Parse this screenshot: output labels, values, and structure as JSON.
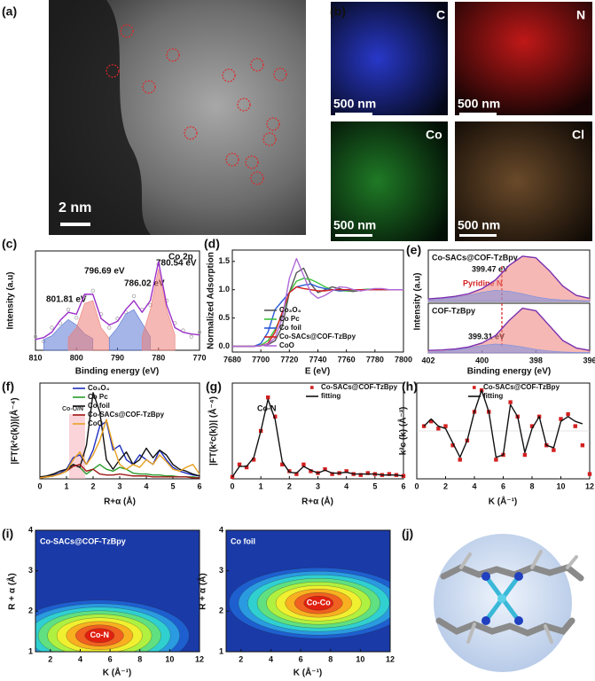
{
  "panels": [
    "(a)",
    "(b)",
    "(c)",
    "(d)",
    "(e)",
    "(f)",
    "(g)",
    "(h)",
    "(i)",
    "(j)"
  ],
  "images": {
    "stem_scale": "2 nm",
    "maps": [
      {
        "element": "C",
        "scale": "500 nm"
      },
      {
        "element": "N",
        "scale": "500 nm"
      },
      {
        "element": "Co",
        "scale": "500 nm"
      },
      {
        "element": "Cl",
        "scale": "500 nm"
      }
    ]
  },
  "chart_data": [
    {
      "type": "line",
      "xlim": [
        810,
        770
      ],
      "xticks": [
        810,
        800,
        790,
        780,
        770
      ],
      "ylim": [
        0,
        1.1
      ],
      "xlabel": "Binding energy (eV)",
      "ylabel": "Intensity (a.u)",
      "annotations": [
        "Co 2p",
        "801.81 eV",
        "796.69 eV",
        "786.02 eV",
        "780.54 eV"
      ],
      "x": [
        810,
        808,
        806,
        804,
        802,
        800,
        798,
        796,
        794,
        792,
        790,
        788,
        786,
        784,
        782,
        780,
        778,
        776,
        774,
        772,
        770
      ],
      "series": [
        {
          "style": "scatter",
          "color": "#a8a8a8",
          "values": [
            0.15,
            0.1,
            0.25,
            0.3,
            0.45,
            0.36,
            0.6,
            0.66,
            0.4,
            0.25,
            0.35,
            0.42,
            0.6,
            0.45,
            0.5,
            0.95,
            0.55,
            0.3,
            0.22,
            0.15,
            0.2
          ]
        },
        {
          "style": "area",
          "color": "#5b78d6",
          "values": [
            null,
            0.12,
            0.16,
            0.26,
            0.34,
            0.28,
            0.18,
            0.13,
            null,
            null,
            null,
            null,
            null,
            null,
            null,
            null,
            null,
            null,
            null,
            null,
            null
          ]
        },
        {
          "style": "area",
          "color": "#ec7d76",
          "values": [
            null,
            null,
            null,
            null,
            0.14,
            0.25,
            0.52,
            0.55,
            0.25,
            0.13,
            null,
            null,
            null,
            null,
            null,
            null,
            null,
            null,
            null,
            null,
            null
          ]
        },
        {
          "style": "area",
          "color": "#5b78d6",
          "values": [
            null,
            null,
            null,
            null,
            null,
            null,
            null,
            null,
            null,
            0.14,
            0.25,
            0.4,
            0.45,
            0.3,
            0.15,
            null,
            null,
            null,
            null,
            null,
            null
          ]
        },
        {
          "style": "area",
          "color": "#ec7d76",
          "values": [
            null,
            null,
            null,
            null,
            null,
            null,
            null,
            null,
            null,
            null,
            null,
            null,
            null,
            0.15,
            0.45,
            0.9,
            0.45,
            0.17,
            null,
            null,
            null
          ]
        },
        {
          "style": "line",
          "color": "#9b2fc9",
          "values": [
            0.12,
            0.14,
            0.2,
            0.33,
            0.42,
            0.4,
            0.62,
            0.62,
            0.35,
            0.28,
            0.32,
            0.45,
            0.55,
            0.42,
            0.55,
            0.98,
            0.5,
            0.25,
            0.2,
            0.18,
            0.17
          ]
        }
      ]
    },
    {
      "type": "line",
      "xlim": [
        7680,
        7800
      ],
      "xticks": [
        7680,
        7700,
        7720,
        7740,
        7760,
        7780,
        7800
      ],
      "ylim": [
        -0.1,
        1.7
      ],
      "yticks": [
        {
          "value": 0,
          "label": "0.0"
        },
        0.5,
        {
          "value": 1,
          "label": "1.0"
        },
        1.5
      ],
      "xlabel": "E (eV)",
      "ylabel": "Normalized Adsorption",
      "x": [
        7680,
        7685,
        7690,
        7695,
        7700,
        7705,
        7710,
        7715,
        7720,
        7725,
        7730,
        7735,
        7740,
        7745,
        7750,
        7755,
        7760,
        7765,
        7770,
        7775,
        7780,
        7785,
        7790,
        7795,
        7800
      ],
      "series": [
        {
          "name": "Co₃O₄",
          "style": "line",
          "color": "#555555",
          "values": [
            0,
            0,
            0,
            0,
            0.01,
            0.03,
            0.1,
            0.35,
            0.95,
            1.3,
            1.38,
            1.1,
            0.95,
            1.0,
            1.05,
            1.02,
            0.98,
            0.97,
            0.99,
            1.0,
            1.01,
            1.0,
            1.0,
            1.0,
            1.0
          ]
        },
        {
          "name": "Co Pc",
          "style": "line",
          "color": "#3cc23c",
          "values": [
            0,
            0,
            0,
            0,
            0.02,
            0.1,
            0.3,
            0.55,
            0.95,
            1.15,
            1.2,
            1.18,
            1.12,
            1.05,
            1.0,
            0.98,
            0.98,
            0.99,
            1.0,
            1.01,
            1.01,
            1.0,
            1.0,
            1.0,
            1.0
          ]
        },
        {
          "name": "Co foil",
          "style": "line",
          "color": "#2a5ad8",
          "values": [
            0,
            0,
            0,
            0,
            0.05,
            0.25,
            0.65,
            0.8,
            0.95,
            1.05,
            1.08,
            1.1,
            1.05,
            1.02,
            1.0,
            0.98,
            0.99,
            1.0,
            1.0,
            1.0,
            1.0,
            1.0,
            1.0,
            1.0,
            1.0
          ]
        },
        {
          "name": "Co-SACs@COF-TzBpy",
          "style": "line",
          "color": "#d42020",
          "values": [
            0,
            0,
            0,
            0,
            0.01,
            0.05,
            0.25,
            0.6,
            0.95,
            1.05,
            1.02,
            1.0,
            0.98,
            0.98,
            1.0,
            1.0,
            1.0,
            1.0,
            1.0,
            1.0,
            1.0,
            1.0,
            1.0,
            1.0,
            1.0
          ]
        },
        {
          "name": "CoO",
          "style": "line",
          "color": "#b06ad8",
          "values": [
            0,
            0,
            0,
            0,
            0.01,
            0.04,
            0.15,
            0.5,
            1.2,
            1.55,
            1.25,
            0.95,
            0.85,
            0.9,
            0.98,
            1.05,
            1.04,
            1.0,
            0.98,
            1.0,
            1.02,
            1.02,
            1.0,
            1.0,
            1.0
          ]
        }
      ]
    },
    {
      "type": "line",
      "xlim": [
        402,
        396
      ],
      "ylim": [
        0,
        1
      ],
      "title": "Co-SACs@COF-TzBpy",
      "annotations": [
        "399.47 eV",
        "Pyridine N"
      ],
      "x": [
        402,
        401.5,
        401,
        400.5,
        400,
        399.5,
        399,
        398.5,
        398,
        397.5,
        397,
        396.5,
        396
      ],
      "series": [
        {
          "style": "area",
          "color": "#ec7d76",
          "values": [
            0.05,
            0.07,
            0.1,
            0.15,
            0.25,
            0.42,
            0.7,
            0.88,
            0.85,
            0.6,
            0.3,
            0.12,
            0.06
          ]
        },
        {
          "style": "area",
          "color": "#7a90e0",
          "values": [
            0.03,
            0.05,
            0.08,
            0.12,
            0.18,
            0.22,
            0.2,
            0.15,
            0.09,
            0.05,
            0.03,
            0.02,
            0.01
          ]
        },
        {
          "style": "line",
          "color": "#7a2fb0",
          "values": [
            0.05,
            0.07,
            0.1,
            0.15,
            0.25,
            0.42,
            0.7,
            0.88,
            0.85,
            0.6,
            0.3,
            0.12,
            0.06
          ]
        }
      ]
    },
    {
      "type": "line",
      "xlim": [
        402,
        396
      ],
      "xticks": [
        402,
        400,
        398,
        396
      ],
      "ylim": [
        0,
        1
      ],
      "title": "COF-TzBpy",
      "xlabel": "Binding energy (eV)",
      "ylabel": "Intensity (a.u)",
      "annotations": [
        "399.31 eV"
      ],
      "x": [
        402,
        401.5,
        401,
        400.5,
        400,
        399.5,
        399,
        398.5,
        398,
        397.5,
        397,
        396.5,
        396
      ],
      "series": [
        {
          "style": "area",
          "color": "#ec7d76",
          "values": [
            0.05,
            0.06,
            0.08,
            0.12,
            0.2,
            0.35,
            0.65,
            0.9,
            0.85,
            0.55,
            0.25,
            0.1,
            0.05
          ]
        },
        {
          "style": "area",
          "color": "#7a90e0",
          "values": [
            0.02,
            0.03,
            0.06,
            0.1,
            0.15,
            0.18,
            0.16,
            0.12,
            0.07,
            0.04,
            0.02,
            0.01,
            0.01
          ]
        },
        {
          "style": "line",
          "color": "#7a2fb0",
          "values": [
            0.05,
            0.06,
            0.08,
            0.12,
            0.2,
            0.35,
            0.65,
            0.9,
            0.85,
            0.55,
            0.25,
            0.1,
            0.05
          ]
        }
      ]
    },
    {
      "type": "line",
      "xlim": [
        0,
        6
      ],
      "xticks": [
        0,
        1,
        2,
        3,
        4,
        5,
        6
      ],
      "ylim": [
        0,
        1
      ],
      "xlabel": "R+α (Å)",
      "ylabel": "|FT(k²c(k))|(Å⁻⁴)",
      "annotations": [
        "Co-O/N"
      ],
      "x": [
        0,
        0.25,
        0.5,
        0.75,
        1,
        1.25,
        1.5,
        1.75,
        2,
        2.25,
        2.5,
        2.75,
        3,
        3.25,
        3.5,
        3.75,
        4,
        4.25,
        4.5,
        4.75,
        5,
        5.25,
        5.5,
        5.75,
        6
      ],
      "series": [
        {
          "name": "Co₃O₄",
          "style": "line",
          "color": "#2030c0",
          "values": [
            0.01,
            0.02,
            0.04,
            0.06,
            0.1,
            0.22,
            0.25,
            0.15,
            0.3,
            0.55,
            0.6,
            0.3,
            0.35,
            0.2,
            0.15,
            0.25,
            0.2,
            0.15,
            0.3,
            0.2,
            0.12,
            0.08,
            0.06,
            0.04,
            0.03
          ]
        },
        {
          "name": "Co Pc",
          "style": "line",
          "color": "#2a9a2a",
          "values": [
            0.01,
            0.02,
            0.03,
            0.05,
            0.08,
            0.15,
            0.12,
            0.05,
            0.1,
            0.15,
            0.1,
            0.08,
            0.12,
            0.1,
            0.06,
            0.05,
            0.05,
            0.04,
            0.04,
            0.03,
            0.03,
            0.02,
            0.02,
            0.02,
            0.01
          ]
        },
        {
          "name": "Co foil",
          "style": "line",
          "color": "#111111",
          "values": [
            0.02,
            0.03,
            0.05,
            0.08,
            0.1,
            0.15,
            0.12,
            0.35,
            0.9,
            0.7,
            0.2,
            0.1,
            0.2,
            0.28,
            0.15,
            0.2,
            0.32,
            0.22,
            0.3,
            0.25,
            0.15,
            0.1,
            0.08,
            0.05,
            0.03
          ]
        },
        {
          "name": "Co-SACs@COF-TzBpy",
          "style": "line",
          "color": "#a01818",
          "values": [
            0.01,
            0.02,
            0.03,
            0.05,
            0.08,
            0.13,
            0.15,
            0.08,
            0.1,
            0.05,
            0.04,
            0.04,
            0.05,
            0.04,
            0.03,
            0.03,
            0.03,
            0.02,
            0.02,
            0.02,
            0.02,
            0.02,
            0.02,
            0.01,
            0.01
          ]
        },
        {
          "name": "CoO",
          "style": "line",
          "color": "#e8a020",
          "values": [
            0.01,
            0.02,
            0.03,
            0.05,
            0.08,
            0.2,
            0.28,
            0.15,
            0.25,
            0.4,
            0.62,
            0.35,
            0.15,
            0.1,
            0.15,
            0.12,
            0.2,
            0.15,
            0.25,
            0.18,
            0.1,
            0.08,
            0.12,
            0.15,
            0.05
          ]
        }
      ]
    },
    {
      "type": "line",
      "xlim": [
        0,
        6
      ],
      "xticks": [
        0,
        1,
        2,
        3,
        4,
        5,
        6
      ],
      "ylim": [
        0,
        1
      ],
      "xlabel": "R+α (Å)",
      "ylabel": "|FT(k²c(k))| (Å⁻⁴)",
      "annotations": [
        "Co-N"
      ],
      "x": [
        0,
        0.25,
        0.5,
        0.75,
        1,
        1.25,
        1.5,
        1.75,
        2,
        2.25,
        2.5,
        2.75,
        3,
        3.25,
        3.5,
        3.75,
        4,
        4.25,
        4.5,
        4.75,
        5,
        5.25,
        5.5,
        5.75,
        6
      ],
      "series": [
        {
          "name": "Co-SACs@COF-TzBpy",
          "style": "scatter",
          "color": "#d42020",
          "values": [
            0.02,
            0.15,
            0.12,
            0.2,
            0.5,
            0.85,
            0.65,
            0.15,
            0.08,
            0.05,
            0.15,
            0.08,
            0.06,
            0.1,
            0.05,
            0.06,
            0.08,
            0.05,
            0.04,
            0.06,
            0.05,
            0.04,
            0.05,
            0.04,
            0.03
          ]
        },
        {
          "name": "fitting",
          "style": "line",
          "color": "#111111",
          "values": [
            0.02,
            0.13,
            0.13,
            0.22,
            0.5,
            0.83,
            0.62,
            0.18,
            0.07,
            0.06,
            0.13,
            0.09,
            0.06,
            0.09,
            0.06,
            0.06,
            0.07,
            0.05,
            0.05,
            0.05,
            0.05,
            0.04,
            0.04,
            0.04,
            0.03
          ]
        }
      ]
    },
    {
      "type": "line",
      "xlim": [
        0,
        12
      ],
      "xticks": [
        0,
        2,
        4,
        6,
        8,
        10,
        12
      ],
      "ylim": [
        -1,
        1
      ],
      "xlabel": "K (Å⁻¹)",
      "ylabel": "k³c (k) (Å⁻³)",
      "x": [
        0,
        0.5,
        1,
        1.5,
        2,
        2.5,
        3,
        3.5,
        4,
        4.5,
        5,
        5.5,
        6,
        6.5,
        7,
        7.5,
        8,
        8.5,
        9,
        9.5,
        10,
        10.5,
        11,
        11.5,
        12
      ],
      "series": [
        {
          "name": "Co-SACs@COF-TzBpy",
          "style": "scatter",
          "color": "#d42020",
          "values": [
            null,
            0.1,
            0.2,
            0.05,
            0.1,
            -0.3,
            -0.6,
            -0.2,
            0.4,
            0.85,
            0.4,
            -0.6,
            -0.5,
            0.6,
            0.3,
            -0.5,
            0.1,
            0.3,
            -0.3,
            -0.4,
            0.25,
            0.35,
            0.1,
            -0.3,
            -0.9
          ]
        },
        {
          "name": "fitting",
          "style": "line",
          "color": "#111111",
          "values": [
            null,
            0.1,
            0.25,
            0.1,
            0.05,
            -0.25,
            -0.55,
            -0.2,
            0.4,
            0.85,
            0.4,
            -0.55,
            -0.5,
            0.55,
            0.3,
            -0.45,
            0.05,
            0.3,
            -0.3,
            -0.35,
            0.2,
            0.3,
            0.2,
            0.15,
            null
          ]
        }
      ]
    },
    {
      "type": "contour",
      "title": "Co-SACs@COF-TzBpy",
      "xlim": [
        1,
        12
      ],
      "xticks": [
        2,
        4,
        6,
        8,
        10,
        12
      ],
      "ylim": [
        1,
        4
      ],
      "yticks": [
        1,
        2,
        3,
        4
      ],
      "xlabel": "K (Å⁻¹)",
      "ylabel": "R + α (Å)",
      "peak": {
        "x": 5.3,
        "y": 1.4,
        "label": "Co-N"
      }
    },
    {
      "type": "contour",
      "title": "Co foil",
      "xlim": [
        1,
        12
      ],
      "xticks": [
        2,
        4,
        6,
        8,
        10,
        12
      ],
      "ylim": [
        1,
        4
      ],
      "yticks": [
        1,
        2,
        3,
        4
      ],
      "xlabel": "K (Å⁻¹)",
      "ylabel": "R + α (Å)",
      "peak": {
        "x": 7.2,
        "y": 2.2,
        "label": "Co-Co"
      }
    }
  ]
}
